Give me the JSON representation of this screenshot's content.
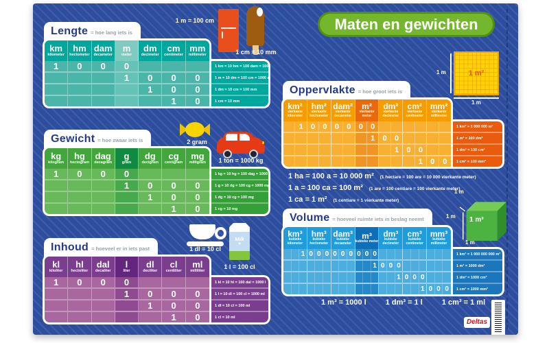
{
  "poster_title": "Maten en gewichten",
  "brand": "Deltas",
  "colors": {
    "poster_bg": "#2d4d9f",
    "badge_green": "#74b62c",
    "lengte_teal": "#00a79c",
    "gewicht_green": "#42a63c",
    "inhoud_purple": "#7b3e8f",
    "oppervlakte_orange": "#f59c00",
    "volume_blue": "#1f9cd9"
  },
  "icon_names": [
    "fridge-icon",
    "popsicle-icon",
    "candy-icon",
    "car-icon",
    "cup-icon",
    "milk-carton-icon",
    "square-meter-icon",
    "cubic-meter-icon",
    "plus-icon",
    "barcode-icon"
  ],
  "sections": {
    "lengte": {
      "title": "Lengte",
      "subtitle": "= hoe lang iets is",
      "units": [
        {
          "abbr": "km",
          "name": "kilometer"
        },
        {
          "abbr": "hm",
          "name": "hectometer"
        },
        {
          "abbr": "dam",
          "name": "decameter"
        },
        {
          "abbr": "m",
          "name": "meter"
        },
        {
          "abbr": "dm",
          "name": "decimeter"
        },
        {
          "abbr": "cm",
          "name": "centimeter"
        },
        {
          "abbr": "mm",
          "name": "millimeter"
        }
      ],
      "rows": [
        [
          "1",
          "0",
          "0",
          "0",
          "",
          "",
          ""
        ],
        [
          "",
          "",
          "",
          "1",
          "0",
          "0",
          "0"
        ],
        [
          "",
          "",
          "",
          "",
          "1",
          "0",
          "0"
        ],
        [
          "",
          "",
          "",
          "",
          "",
          "1",
          "0"
        ]
      ],
      "notes": [
        "1 km = 10 hm = 100 dam = 1000 m",
        "1 m = 10 dm = 100 cm = 1000 mm",
        "1 dm = 10 cm = 100 mm",
        "1 cm = 10 mm"
      ]
    },
    "gewicht": {
      "title": "Gewicht",
      "subtitle": "= hoe zwaar iets is",
      "units": [
        {
          "abbr": "kg",
          "name": "kilogram"
        },
        {
          "abbr": "hg",
          "name": "hectogram"
        },
        {
          "abbr": "dag",
          "name": "decagram"
        },
        {
          "abbr": "g",
          "name": "gram"
        },
        {
          "abbr": "dg",
          "name": "decigram"
        },
        {
          "abbr": "cg",
          "name": "centigram"
        },
        {
          "abbr": "mg",
          "name": "milligram"
        }
      ],
      "rows": [
        [
          "1",
          "0",
          "0",
          "0",
          "",
          "",
          ""
        ],
        [
          "",
          "",
          "",
          "1",
          "0",
          "0",
          "0"
        ],
        [
          "",
          "",
          "",
          "",
          "1",
          "0",
          "0"
        ],
        [
          "",
          "",
          "",
          "",
          "",
          "1",
          "0"
        ]
      ],
      "notes": [
        "1 kg = 10 hg = 100 dag = 1000 g",
        "1 g = 10 dg = 100 cg = 1000 mg",
        "1 dg = 10 cg = 100 mg",
        "1 cg = 10 mg"
      ]
    },
    "inhoud": {
      "title": "Inhoud",
      "subtitle": "= hoeveel er in iets past",
      "units": [
        {
          "abbr": "kl",
          "name": "kiloliter"
        },
        {
          "abbr": "hl",
          "name": "hectoliter"
        },
        {
          "abbr": "dal",
          "name": "decaliter"
        },
        {
          "abbr": "l",
          "name": "liter"
        },
        {
          "abbr": "dl",
          "name": "deciliter"
        },
        {
          "abbr": "cl",
          "name": "centiliter"
        },
        {
          "abbr": "ml",
          "name": "milliliter"
        }
      ],
      "rows": [
        [
          "1",
          "0",
          "0",
          "0",
          "",
          "",
          ""
        ],
        [
          "",
          "",
          "",
          "1",
          "0",
          "0",
          "0"
        ],
        [
          "",
          "",
          "",
          "",
          "1",
          "0",
          "0"
        ],
        [
          "",
          "",
          "",
          "",
          "",
          "1",
          "0"
        ]
      ],
      "notes": [
        "1 kl = 10 hl = 100 dal = 1000 l",
        "1 l = 10 dl = 100 cl = 1000 ml",
        "1 dl = 10 cl = 100 ml",
        "1 cl = 10 ml"
      ]
    },
    "oppervlakte": {
      "title": "Oppervlakte",
      "subtitle": "= hoe groot iets is",
      "units": [
        {
          "abbr": "km²",
          "name": "vierkante kilometer"
        },
        {
          "abbr": "hm²",
          "name": "vierkante hectometer"
        },
        {
          "abbr": "dam²",
          "name": "vierkante decameter"
        },
        {
          "abbr": "m²",
          "name": "vierkante meter"
        },
        {
          "abbr": "dm²",
          "name": "vierkante decimeter"
        },
        {
          "abbr": "cm²",
          "name": "vierkante centimeter"
        },
        {
          "abbr": "mm²",
          "name": "vierkante millimeter"
        }
      ],
      "rows": [
        [
          "",
          "1",
          "0",
          "0",
          "0",
          "0",
          "0",
          "0",
          "",
          "",
          "",
          "",
          "",
          ""
        ],
        [
          "",
          "",
          "",
          "",
          "",
          "",
          "",
          "1",
          "0",
          "0",
          "",
          "",
          "",
          ""
        ],
        [
          "",
          "",
          "",
          "",
          "",
          "",
          "",
          "",
          "",
          "1",
          "0",
          "0",
          "",
          ""
        ],
        [
          "",
          "",
          "",
          "",
          "",
          "",
          "",
          "",
          "",
          "",
          "",
          "1",
          "0",
          "0"
        ]
      ],
      "notes": [
        "1 km² = 1 000 000 m²",
        "1 m² = 100 dm²",
        "1 dm² = 100 cm²",
        "1 cm² = 100 mm²"
      ],
      "equations": [
        {
          "main": "1 ha = 100 a = 10 000 m²",
          "paren": "(1 hectare = 100 are = 10 000 vierkante meter)"
        },
        {
          "main": "1 a = 100 ca = 100 m²",
          "paren": "(1 are = 100 centiare = 100 vierkante meter)"
        },
        {
          "main": "1 ca = 1 m²",
          "paren": "(1 centiare = 1 vierkante meter)"
        }
      ],
      "square_label": "1 m²",
      "square_side_left": "1 m",
      "square_side_bottom": "1 m"
    },
    "volume": {
      "title": "Volume",
      "subtitle": "= hoeveel ruimte iets in beslag neemt",
      "units": [
        {
          "abbr": "km³",
          "name": "kubieke kilometer"
        },
        {
          "abbr": "hm³",
          "name": "kubieke hectometer"
        },
        {
          "abbr": "dam³",
          "name": "kubieke decameter"
        },
        {
          "abbr": "m³",
          "name": "kubieke meter"
        },
        {
          "abbr": "dm³",
          "name": "kubieke decimeter"
        },
        {
          "abbr": "cm³",
          "name": "kubieke centimeter"
        },
        {
          "abbr": "mm³",
          "name": "kubieke millimeter"
        }
      ],
      "rows": [
        [
          "",
          "",
          "1",
          "0",
          "0",
          "0",
          "0",
          "0",
          "0",
          "0",
          "0",
          "0",
          "",
          "",
          "",
          "",
          "",
          "",
          "",
          "",
          ""
        ],
        [
          "",
          "",
          "",
          "",
          "",
          "",
          "",
          "",
          "",
          "",
          "",
          "1",
          "0",
          "0",
          "0",
          "",
          "",
          "",
          "",
          "",
          ""
        ],
        [
          "",
          "",
          "",
          "",
          "",
          "",
          "",
          "",
          "",
          "",
          "",
          "",
          "",
          "",
          "1",
          "0",
          "0",
          "0",
          "",
          "",
          ""
        ],
        [
          "",
          "",
          "",
          "",
          "",
          "",
          "",
          "",
          "",
          "",
          "",
          "",
          "",
          "",
          "",
          "",
          "",
          "1",
          "0",
          "0",
          "0"
        ]
      ],
      "notes": [
        "1 km³ = 1 000 000 000 m³",
        "1 m³ = 1000 dm³",
        "1 dm³ = 1000 cm³",
        "1 cm³ = 1000 mm³"
      ],
      "footer": [
        "1 m³ = 1000 l",
        "1 dm³ = 1 l",
        "1 cm³ = 1 ml"
      ],
      "cube_label": "1 m³",
      "cube_side": "1 m"
    }
  },
  "annotations": {
    "fridge": "1 m = 100 cm",
    "icecream": "1 cm = 10 mm",
    "candy": "2 gram",
    "car": "1 ton = 1000 kg",
    "cup": "1 dl = 10 cl",
    "milk": "1 l = 100 cl",
    "milk_text": "Milk",
    "heart": "♥"
  }
}
